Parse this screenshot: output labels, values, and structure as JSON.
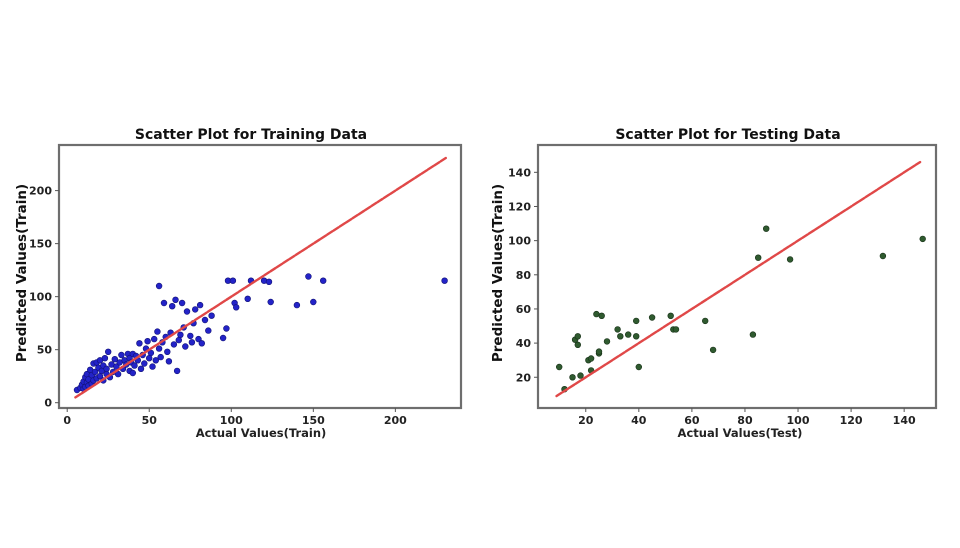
{
  "chart_data": [
    {
      "type": "scatter",
      "title": "Scatter Plot for Training Data",
      "xlabel": "Actual Values(Train)",
      "ylabel": "Predicted Values(Train)",
      "xlim": [
        -5,
        240
      ],
      "ylim": [
        -5,
        243
      ],
      "xticks": [
        0,
        50,
        100,
        150,
        200
      ],
      "yticks": [
        0,
        50,
        100,
        150,
        200
      ],
      "point_color": "#2323c8",
      "point_edge": "#121278",
      "line_color": "#e04848",
      "reference_line": [
        [
          5,
          5
        ],
        [
          231,
          231
        ]
      ],
      "points": [
        [
          6,
          12
        ],
        [
          8,
          14
        ],
        [
          9,
          17
        ],
        [
          10,
          13
        ],
        [
          10,
          20
        ],
        [
          11,
          15
        ],
        [
          11,
          24
        ],
        [
          12,
          19
        ],
        [
          12,
          27
        ],
        [
          13,
          16
        ],
        [
          13,
          22
        ],
        [
          14,
          31
        ],
        [
          15,
          18
        ],
        [
          15,
          26
        ],
        [
          16,
          21
        ],
        [
          16,
          37
        ],
        [
          17,
          29
        ],
        [
          18,
          23
        ],
        [
          18,
          38
        ],
        [
          19,
          33
        ],
        [
          20,
          25
        ],
        [
          20,
          40
        ],
        [
          21,
          30
        ],
        [
          22,
          21
        ],
        [
          22,
          35
        ],
        [
          23,
          42
        ],
        [
          24,
          27
        ],
        [
          24,
          32
        ],
        [
          25,
          48
        ],
        [
          26,
          24
        ],
        [
          27,
          36
        ],
        [
          28,
          29
        ],
        [
          29,
          41
        ],
        [
          30,
          34
        ],
        [
          31,
          27
        ],
        [
          32,
          38
        ],
        [
          33,
          45
        ],
        [
          34,
          32
        ],
        [
          35,
          40
        ],
        [
          36,
          36
        ],
        [
          37,
          46
        ],
        [
          38,
          30
        ],
        [
          38,
          42
        ],
        [
          39,
          38
        ],
        [
          40,
          28
        ],
        [
          40,
          46
        ],
        [
          41,
          35
        ],
        [
          42,
          44
        ],
        [
          43,
          40
        ],
        [
          44,
          56
        ],
        [
          45,
          32
        ],
        [
          46,
          45
        ],
        [
          47,
          37
        ],
        [
          48,
          51
        ],
        [
          49,
          58
        ],
        [
          50,
          42
        ],
        [
          51,
          47
        ],
        [
          52,
          34
        ],
        [
          53,
          60
        ],
        [
          54,
          40
        ],
        [
          55,
          67
        ],
        [
          56,
          110
        ],
        [
          56,
          51
        ],
        [
          57,
          43
        ],
        [
          58,
          57
        ],
        [
          59,
          94
        ],
        [
          60,
          62
        ],
        [
          61,
          48
        ],
        [
          62,
          39
        ],
        [
          63,
          66
        ],
        [
          64,
          91
        ],
        [
          65,
          55
        ],
        [
          66,
          97
        ],
        [
          67,
          30
        ],
        [
          68,
          59
        ],
        [
          69,
          64
        ],
        [
          70,
          94
        ],
        [
          71,
          71
        ],
        [
          72,
          53
        ],
        [
          73,
          86
        ],
        [
          75,
          63
        ],
        [
          76,
          57
        ],
        [
          77,
          75
        ],
        [
          78,
          88
        ],
        [
          80,
          60
        ],
        [
          81,
          92
        ],
        [
          82,
          56
        ],
        [
          84,
          78
        ],
        [
          86,
          68
        ],
        [
          88,
          82
        ],
        [
          95,
          61
        ],
        [
          97,
          70
        ],
        [
          98,
          115
        ],
        [
          101,
          115
        ],
        [
          102,
          94
        ],
        [
          103,
          90
        ],
        [
          110,
          98
        ],
        [
          112,
          115
        ],
        [
          120,
          115
        ],
        [
          123,
          114
        ],
        [
          124,
          95
        ],
        [
          140,
          92
        ],
        [
          147,
          119
        ],
        [
          150,
          95
        ],
        [
          156,
          115
        ],
        [
          230,
          115
        ]
      ]
    },
    {
      "type": "scatter",
      "title": "Scatter Plot for Testing Data",
      "xlabel": "Actual Values(Test)",
      "ylabel": "Predicted Values(Train)",
      "xlim": [
        2,
        152
      ],
      "ylim": [
        2,
        156
      ],
      "xticks": [
        20,
        40,
        60,
        80,
        100,
        120,
        140
      ],
      "yticks": [
        20,
        40,
        60,
        80,
        100,
        120,
        140
      ],
      "point_color": "#2f5a2f",
      "point_edge": "#173017",
      "line_color": "#e04848",
      "reference_line": [
        [
          9,
          9
        ],
        [
          146,
          146
        ]
      ],
      "points": [
        [
          10,
          26
        ],
        [
          12,
          13
        ],
        [
          15,
          20
        ],
        [
          16,
          42
        ],
        [
          17,
          39
        ],
        [
          17,
          44
        ],
        [
          18,
          21
        ],
        [
          21,
          30
        ],
        [
          22,
          31
        ],
        [
          22,
          24
        ],
        [
          24,
          57
        ],
        [
          25,
          34
        ],
        [
          25,
          35
        ],
        [
          26,
          56
        ],
        [
          28,
          41
        ],
        [
          32,
          48
        ],
        [
          33,
          44
        ],
        [
          36,
          45
        ],
        [
          39,
          44
        ],
        [
          39,
          53
        ],
        [
          40,
          26
        ],
        [
          45,
          55
        ],
        [
          52,
          56
        ],
        [
          53,
          48
        ],
        [
          54,
          48
        ],
        [
          65,
          53
        ],
        [
          68,
          36
        ],
        [
          83,
          45
        ],
        [
          85,
          90
        ],
        [
          88,
          107
        ],
        [
          97,
          89
        ],
        [
          132,
          91
        ],
        [
          147,
          101
        ]
      ]
    }
  ]
}
